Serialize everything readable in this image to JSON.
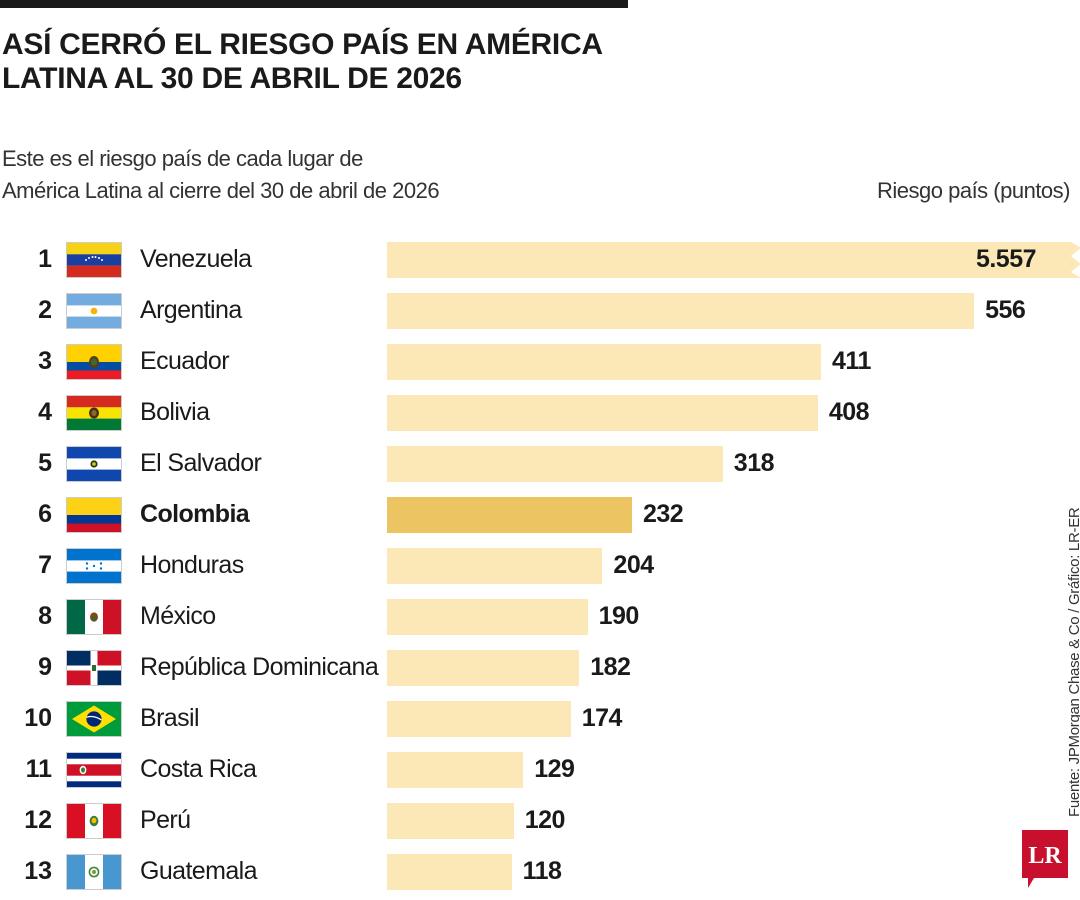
{
  "header": {
    "title": "ASÍ CERRÓ EL RIESGO PAÍS EN AMÉRICA LATINA AL 30 DE ABRIL DE 2026",
    "subtitle_line1": "Este es el riesgo país de cada lugar de",
    "subtitle_line2": "América Latina al cierre del 30 de abril de 2026",
    "ylabel": "Riesgo país (puntos)"
  },
  "footer": {
    "source": "Fuente: JPMorgan Chase & Co / Gráfico: LR-ER",
    "logo_text": "LR"
  },
  "colors": {
    "bar": "#fce8b7",
    "bar_highlight": "#ecc562",
    "logo": "#c8102e"
  },
  "chart_data": {
    "type": "bar",
    "orientation": "horizontal",
    "title": "ASÍ CERRÓ EL RIESGO PAÍS EN AMÉRICA LATINA AL 30 DE ABRIL DE 2026",
    "ylabel": "Riesgo país (puntos)",
    "highlight": "Colombia",
    "broken_axis_value": 5557,
    "rows": [
      {
        "rank": "1",
        "country": "Venezuela",
        "flag": "venezuela-flag",
        "value": 5557,
        "label": "5.557"
      },
      {
        "rank": "2",
        "country": "Argentina",
        "flag": "argentina-flag",
        "value": 556,
        "label": "556"
      },
      {
        "rank": "3",
        "country": "Ecuador",
        "flag": "ecuador-flag",
        "value": 411,
        "label": "411"
      },
      {
        "rank": "4",
        "country": "Bolivia",
        "flag": "bolivia-flag",
        "value": 408,
        "label": "408"
      },
      {
        "rank": "5",
        "country": "El Salvador",
        "flag": "el-salvador-flag",
        "value": 318,
        "label": "318"
      },
      {
        "rank": "6",
        "country": "Colombia",
        "flag": "colombia-flag",
        "value": 232,
        "label": "232"
      },
      {
        "rank": "7",
        "country": "Honduras",
        "flag": "honduras-flag",
        "value": 204,
        "label": "204"
      },
      {
        "rank": "8",
        "country": "México",
        "flag": "mexico-flag",
        "value": 190,
        "label": "190"
      },
      {
        "rank": "9",
        "country": "República Dominicana",
        "flag": "dominican-republic-flag",
        "value": 182,
        "label": "182"
      },
      {
        "rank": "10",
        "country": "Brasil",
        "flag": "brazil-flag",
        "value": 174,
        "label": "174"
      },
      {
        "rank": "11",
        "country": "Costa Rica",
        "flag": "costa-rica-flag",
        "value": 129,
        "label": "129"
      },
      {
        "rank": "12",
        "country": "Perú",
        "flag": "peru-flag",
        "value": 120,
        "label": "120"
      },
      {
        "rank": "13",
        "country": "Guatemala",
        "flag": "guatemala-flag",
        "value": 118,
        "label": "118"
      }
    ]
  }
}
